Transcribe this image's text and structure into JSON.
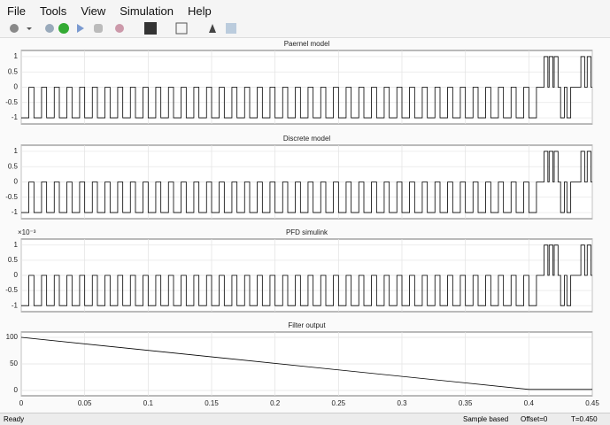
{
  "menu": [
    "File",
    "Tools",
    "View",
    "Simulation",
    "Help"
  ],
  "chart_data": [
    {
      "type": "line",
      "title": "Paernel model",
      "drawstyle": "steps",
      "color": "#000000",
      "grid": true,
      "xlim": [
        0,
        0.45
      ],
      "ylim": [
        -1.2,
        1.2
      ],
      "yticks": [
        -1,
        -0.5,
        0,
        0.5,
        1
      ],
      "x": [
        0,
        0.006,
        0.01,
        0.016,
        0.02,
        0.026,
        0.03,
        0.036,
        0.04,
        0.046,
        0.05,
        0.056,
        0.06,
        0.066,
        0.07,
        0.076,
        0.08,
        0.086,
        0.09,
        0.096,
        0.1,
        0.106,
        0.11,
        0.116,
        0.12,
        0.126,
        0.13,
        0.136,
        0.14,
        0.146,
        0.15,
        0.156,
        0.16,
        0.166,
        0.17,
        0.176,
        0.18,
        0.186,
        0.19,
        0.196,
        0.2,
        0.206,
        0.21,
        0.216,
        0.22,
        0.226,
        0.23,
        0.236,
        0.24,
        0.246,
        0.25,
        0.256,
        0.26,
        0.266,
        0.27,
        0.276,
        0.28,
        0.286,
        0.29,
        0.296,
        0.3,
        0.306,
        0.31,
        0.316,
        0.32,
        0.326,
        0.33,
        0.336,
        0.34,
        0.346,
        0.35,
        0.356,
        0.36,
        0.366,
        0.37,
        0.376,
        0.38,
        0.386,
        0.39,
        0.396,
        0.4,
        0.406,
        0.412,
        0.415,
        0.416,
        0.419,
        0.42,
        0.423,
        0.425,
        0.428,
        0.43,
        0.433,
        0.441,
        0.444,
        0.446,
        0.449
      ],
      "values": [
        -1,
        0,
        -1,
        0,
        -1,
        0,
        -1,
        0,
        -1,
        0,
        -1,
        0,
        -1,
        0,
        -1,
        0,
        -1,
        0,
        -1,
        0,
        -1,
        0,
        -1,
        0,
        -1,
        0,
        -1,
        0,
        -1,
        0,
        -1,
        0,
        -1,
        0,
        -1,
        0,
        -1,
        0,
        -1,
        0,
        -1,
        0,
        -1,
        0,
        -1,
        0,
        -1,
        0,
        -1,
        0,
        -1,
        0,
        -1,
        0,
        -1,
        0,
        -1,
        0,
        -1,
        0,
        -1,
        0,
        -1,
        0,
        -1,
        0,
        -1,
        0,
        -1,
        0,
        -1,
        0,
        -1,
        0,
        -1,
        0,
        -1,
        0,
        -1,
        0,
        -1,
        0,
        1,
        0,
        1,
        0,
        1,
        0,
        -1,
        0,
        -1,
        0,
        1,
        0,
        1,
        0
      ]
    },
    {
      "type": "line",
      "title": "Discrete model",
      "drawstyle": "steps",
      "color": "#000000",
      "grid": true,
      "xlim": [
        0,
        0.45
      ],
      "ylim": [
        -1.2,
        1.2
      ],
      "yticks": [
        -1,
        -0.5,
        0,
        0.5,
        1
      ],
      "x": [
        0,
        0.006,
        0.01,
        0.016,
        0.02,
        0.026,
        0.03,
        0.036,
        0.04,
        0.046,
        0.05,
        0.056,
        0.06,
        0.066,
        0.07,
        0.076,
        0.08,
        0.086,
        0.09,
        0.096,
        0.1,
        0.106,
        0.11,
        0.116,
        0.12,
        0.126,
        0.13,
        0.136,
        0.14,
        0.146,
        0.15,
        0.156,
        0.16,
        0.166,
        0.17,
        0.176,
        0.18,
        0.186,
        0.19,
        0.196,
        0.2,
        0.206,
        0.21,
        0.216,
        0.22,
        0.226,
        0.23,
        0.236,
        0.24,
        0.246,
        0.25,
        0.256,
        0.26,
        0.266,
        0.27,
        0.276,
        0.28,
        0.286,
        0.29,
        0.296,
        0.3,
        0.306,
        0.31,
        0.316,
        0.32,
        0.326,
        0.33,
        0.336,
        0.34,
        0.346,
        0.35,
        0.356,
        0.36,
        0.366,
        0.37,
        0.376,
        0.38,
        0.386,
        0.39,
        0.396,
        0.4,
        0.406,
        0.412,
        0.415,
        0.416,
        0.419,
        0.42,
        0.423,
        0.425,
        0.428,
        0.43,
        0.433,
        0.441,
        0.444,
        0.446,
        0.449
      ],
      "values": [
        -1,
        0,
        -1,
        0,
        -1,
        0,
        -1,
        0,
        -1,
        0,
        -1,
        0,
        -1,
        0,
        -1,
        0,
        -1,
        0,
        -1,
        0,
        -1,
        0,
        -1,
        0,
        -1,
        0,
        -1,
        0,
        -1,
        0,
        -1,
        0,
        -1,
        0,
        -1,
        0,
        -1,
        0,
        -1,
        0,
        -1,
        0,
        -1,
        0,
        -1,
        0,
        -1,
        0,
        -1,
        0,
        -1,
        0,
        -1,
        0,
        -1,
        0,
        -1,
        0,
        -1,
        0,
        -1,
        0,
        -1,
        0,
        -1,
        0,
        -1,
        0,
        -1,
        0,
        -1,
        0,
        -1,
        0,
        -1,
        0,
        -1,
        0,
        -1,
        0,
        -1,
        0,
        1,
        0,
        1,
        0,
        1,
        0,
        -1,
        0,
        -1,
        0,
        1,
        0,
        1,
        0
      ]
    },
    {
      "type": "line",
      "title": "PFD simulink",
      "y_exponent": "×10⁻³",
      "drawstyle": "steps",
      "color": "#000000",
      "grid": true,
      "xlim": [
        0,
        0.45
      ],
      "ylim": [
        -1.2,
        1.2
      ],
      "yticks": [
        -1,
        -0.5,
        0,
        0.5,
        1
      ],
      "x": [
        0,
        0.006,
        0.01,
        0.016,
        0.02,
        0.026,
        0.03,
        0.036,
        0.04,
        0.046,
        0.05,
        0.056,
        0.06,
        0.066,
        0.07,
        0.076,
        0.08,
        0.086,
        0.09,
        0.096,
        0.1,
        0.106,
        0.11,
        0.116,
        0.12,
        0.126,
        0.13,
        0.136,
        0.14,
        0.146,
        0.15,
        0.156,
        0.16,
        0.166,
        0.17,
        0.176,
        0.18,
        0.186,
        0.19,
        0.196,
        0.2,
        0.206,
        0.21,
        0.216,
        0.22,
        0.226,
        0.23,
        0.236,
        0.24,
        0.246,
        0.25,
        0.256,
        0.26,
        0.266,
        0.27,
        0.276,
        0.28,
        0.286,
        0.29,
        0.296,
        0.3,
        0.306,
        0.31,
        0.316,
        0.32,
        0.326,
        0.33,
        0.336,
        0.34,
        0.346,
        0.35,
        0.356,
        0.36,
        0.366,
        0.37,
        0.376,
        0.38,
        0.386,
        0.39,
        0.396,
        0.4,
        0.406,
        0.412,
        0.415,
        0.416,
        0.419,
        0.42,
        0.423,
        0.425,
        0.428,
        0.43,
        0.433,
        0.441,
        0.444,
        0.446,
        0.449
      ],
      "values": [
        -1,
        0,
        -1,
        0,
        -1,
        0,
        -1,
        0,
        -1,
        0,
        -1,
        0,
        -1,
        0,
        -1,
        0,
        -1,
        0,
        -1,
        0,
        -1,
        0,
        -1,
        0,
        -1,
        0,
        -1,
        0,
        -1,
        0,
        -1,
        0,
        -1,
        0,
        -1,
        0,
        -1,
        0,
        -1,
        0,
        -1,
        0,
        -1,
        0,
        -1,
        0,
        -1,
        0,
        -1,
        0,
        -1,
        0,
        -1,
        0,
        -1,
        0,
        -1,
        0,
        -1,
        0,
        -1,
        0,
        -1,
        0,
        -1,
        0,
        -1,
        0,
        -1,
        0,
        -1,
        0,
        -1,
        0,
        -1,
        0,
        -1,
        0,
        -1,
        0,
        -1,
        0,
        1,
        0,
        1,
        0,
        1,
        0,
        -1,
        0,
        -1,
        0,
        1,
        0,
        1,
        0
      ]
    },
    {
      "type": "line",
      "title": "Filter output",
      "color": "#000000",
      "grid": true,
      "xlim": [
        0,
        0.45
      ],
      "ylim": [
        -10,
        110
      ],
      "yticks": [
        0,
        50,
        100
      ],
      "xticks": [
        0,
        0.05,
        0.1,
        0.15,
        0.2,
        0.25,
        0.3,
        0.35,
        0.4,
        0.45
      ],
      "x": [
        0,
        0.4,
        0.45
      ],
      "values": [
        100,
        2,
        2
      ]
    }
  ],
  "status": {
    "left": "Ready",
    "mode": "Sample based",
    "offset": "Offset=0",
    "time": "T=0.450"
  }
}
